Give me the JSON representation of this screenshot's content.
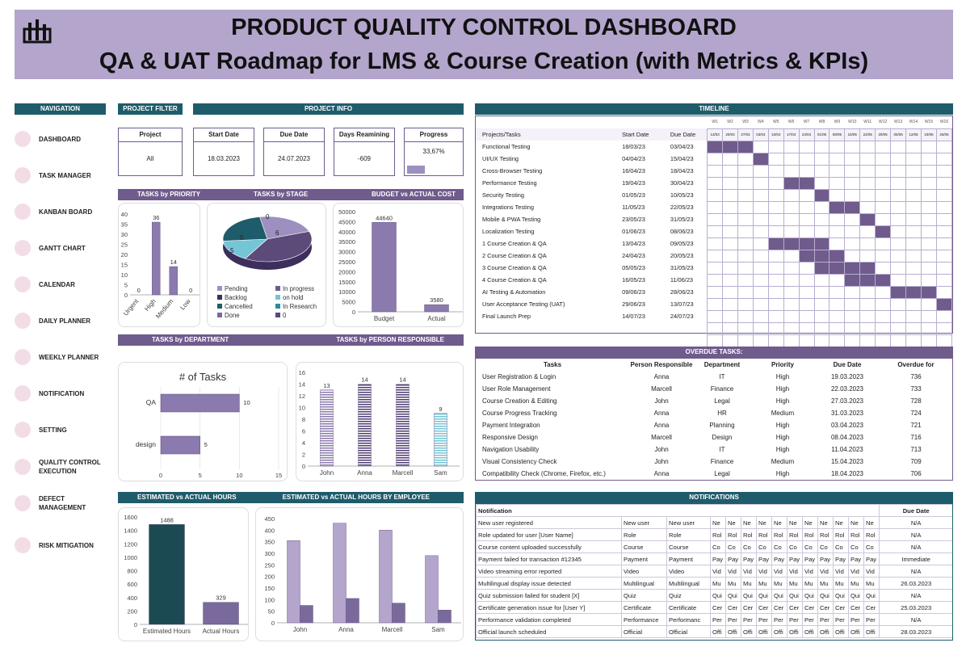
{
  "header": {
    "title": "PRODUCT QUALITY CONTROL DASHBOARD",
    "subtitle": "QA & UAT Roadmap for LMS & Course Creation (with Metrics & KPIs)",
    "logo_icon": "dashboard-bars-icon"
  },
  "navigation": {
    "title": "NAVIGATION",
    "items": [
      {
        "label": "DASHBOARD",
        "icon": "dashboard-icon"
      },
      {
        "label": "TASK MANAGER",
        "icon": "task-icon"
      },
      {
        "label": "KANBAN BOARD",
        "icon": "kanban-icon"
      },
      {
        "label": "GANTT CHART",
        "icon": "gantt-icon"
      },
      {
        "label": "CALENDAR",
        "icon": "calendar-icon"
      },
      {
        "label": "DAILY PLANNER",
        "icon": "daily-planner-icon"
      },
      {
        "label": "WEEKLY PLANNER",
        "icon": "weekly-planner-icon"
      },
      {
        "label": "NOTIFICATION",
        "icon": "notification-icon"
      },
      {
        "label": "SETTING",
        "icon": "setting-icon"
      },
      {
        "label": "QUALITY CONTROL EXECUTION",
        "icon": "quality-icon"
      },
      {
        "label": "DEFECT MANAGEMENT",
        "icon": "defect-icon"
      },
      {
        "label": "RISK MITIGATION",
        "icon": "risk-icon"
      }
    ]
  },
  "project_filter": {
    "title": "PROJECT FILTER",
    "label": "Project",
    "value": "All"
  },
  "project_info": {
    "title": "PROJECT INFO",
    "start_label": "Start Date",
    "start": "18.03.2023",
    "due_label": "Due Date",
    "due": "24.07.2023",
    "days_label": "Days Reamining",
    "days": "-609",
    "progress_label": "Progress",
    "progress": "33,67%",
    "progress_value": 0.3367
  },
  "section_titles": {
    "priority": "TASKS by PRIORITY",
    "stage": "TASKS by STAGE",
    "budget": "BUDGET vs ACTUAL COST",
    "department": "TASKS by DEPARTMENT",
    "person": "TASKS by PERSON RESPONSIBLE",
    "est_actual": "ESTIMATED vs ACTUAL HOURS",
    "est_employee": "ESTIMATED vs ACTUAL HOURS BY EMPLOYEE",
    "timeline": "TIMELINE",
    "overdue": "OVERDUE TASKS:",
    "notifications": "NOTIFICATIONS"
  },
  "chart_data": [
    {
      "type": "bar",
      "name": "priority",
      "categories": [
        "Urgent",
        "High",
        "Medium",
        "Low"
      ],
      "values": [
        0,
        36,
        14,
        0
      ],
      "ylim": [
        0,
        40
      ],
      "yticks": [
        0,
        5,
        10,
        15,
        20,
        25,
        30,
        35,
        40
      ]
    },
    {
      "type": "pie",
      "name": "stage",
      "slices": [
        {
          "label": "Pending",
          "value": 6
        },
        {
          "label": "In progress",
          "value": 0
        },
        {
          "label": "Backlog",
          "value": 0
        },
        {
          "label": "on hold",
          "value": 5
        },
        {
          "label": "Cancelled",
          "value": 0
        },
        {
          "label": "In Research",
          "value": 0
        },
        {
          "label": "Done",
          "value": 0
        },
        {
          "label": "0",
          "value": 0
        }
      ],
      "data_labels": [
        "0",
        "6",
        "0",
        "5"
      ],
      "legend": [
        "Pending",
        "In progress",
        "Backlog",
        "on hold",
        "Cancelled",
        "In Research",
        "Done",
        "0"
      ],
      "colors": [
        "#9d8fbf",
        "#6f5b8c",
        "#3d2f5c",
        "#74c6d6",
        "#1f5c6b",
        "#2b8c9b",
        "#7a6a9c",
        "#5c4a7a"
      ]
    },
    {
      "type": "bar",
      "name": "budget",
      "categories": [
        "Budget",
        "Actual"
      ],
      "values": [
        44640,
        3580
      ],
      "ylim": [
        0,
        50000
      ],
      "yticks": [
        0,
        5000,
        10000,
        15000,
        20000,
        25000,
        30000,
        35000,
        40000,
        45000,
        50000
      ]
    },
    {
      "type": "bar",
      "name": "department",
      "title": "# of Tasks",
      "categories": [
        "QA",
        "design"
      ],
      "values": [
        10,
        5
      ],
      "xlim": [
        0,
        15
      ],
      "xticks": [
        0,
        5,
        10,
        15
      ]
    },
    {
      "type": "bar",
      "name": "person",
      "categories": [
        "John",
        "Anna",
        "Marcell",
        "Sam"
      ],
      "values": [
        13,
        14,
        14,
        9
      ],
      "ylim": [
        0,
        16
      ],
      "yticks": [
        0,
        2,
        4,
        6,
        8,
        10,
        12,
        14,
        16
      ]
    },
    {
      "type": "bar",
      "name": "est_actual",
      "categories": [
        "Estimated Hours",
        "Actual Hours"
      ],
      "values": [
        1488,
        329
      ],
      "ylim": [
        0,
        1600
      ],
      "yticks": [
        0,
        200,
        400,
        600,
        800,
        1000,
        1200,
        1400,
        1600
      ]
    },
    {
      "type": "bar",
      "name": "est_employee",
      "categories": [
        "John",
        "Anna",
        "Marcell",
        "Sam"
      ],
      "series": [
        {
          "values": [
            355,
            430,
            400,
            290
          ]
        },
        {
          "values": [
            75,
            105,
            85,
            55
          ]
        }
      ],
      "ylim": [
        0,
        450
      ],
      "yticks": [
        0,
        50,
        100,
        150,
        200,
        250,
        300,
        350,
        400,
        450
      ]
    }
  ],
  "timeline": {
    "col_task": "Projects/Tasks",
    "col_start": "Start Date",
    "col_due": "Due Date",
    "weeks": [
      "W1",
      "W2",
      "W3",
      "W4",
      "W5",
      "W6",
      "W7",
      "W8",
      "W9",
      "W10",
      "W11",
      "W12",
      "W13",
      "W14",
      "W15",
      "W16"
    ],
    "week_dates": [
      "13/03",
      "20/03",
      "27/03",
      "03/04",
      "10/04",
      "17/04",
      "24/04",
      "01/05",
      "08/05",
      "15/05",
      "22/05",
      "29/05",
      "05/06",
      "12/06",
      "19/06",
      "26/06"
    ],
    "rows": [
      {
        "task": "Functional Testing",
        "start": "18/03/23",
        "due": "03/04/23",
        "s": 0,
        "e": 3
      },
      {
        "task": "UI/UX Testing",
        "start": "04/04/23",
        "due": "15/04/23",
        "s": 3,
        "e": 4
      },
      {
        "task": "Cross-Browser Testing",
        "start": "16/04/23",
        "due": "18/04/23",
        "s": 0,
        "e": 0
      },
      {
        "task": "Performance Testing",
        "start": "19/04/23",
        "due": "30/04/23",
        "s": 5,
        "e": 7
      },
      {
        "task": "Security Testing",
        "start": "01/05/23",
        "due": "10/05/23",
        "s": 7,
        "e": 8
      },
      {
        "task": "Integrations Testing",
        "start": "11/05/23",
        "due": "22/05/23",
        "s": 8,
        "e": 10
      },
      {
        "task": "Mobile & PWA Testing",
        "start": "23/05/23",
        "due": "31/05/23",
        "s": 10,
        "e": 11
      },
      {
        "task": "Localization Testing",
        "start": "01/06/23",
        "due": "08/06/23",
        "s": 11,
        "e": 12
      },
      {
        "task": "1 Course Creation & QA",
        "start": "13/04/23",
        "due": "09/05/23",
        "s": 4,
        "e": 8
      },
      {
        "task": "2 Course Creation & QA",
        "start": "24/04/23",
        "due": "20/05/23",
        "s": 6,
        "e": 9
      },
      {
        "task": "3 Course Creation & QA",
        "start": "05/05/23",
        "due": "31/05/23",
        "s": 7,
        "e": 11
      },
      {
        "task": "4 Course Creation & QA",
        "start": "16/05/23",
        "due": "11/06/23",
        "s": 9,
        "e": 12
      },
      {
        "task": "AI Testing & Automation",
        "start": "09/06/23",
        "due": "28/06/23",
        "s": 12,
        "e": 15
      },
      {
        "task": "User Acceptance Testing (UAT)",
        "start": "29/06/23",
        "due": "13/07/23",
        "s": 15,
        "e": 16
      },
      {
        "task": "Final Launch Prep",
        "start": "14/07/23",
        "due": "24/07/23",
        "s": 0,
        "e": 0
      }
    ]
  },
  "overdue": {
    "headers": [
      "Tasks",
      "Person Responsible",
      "Department",
      "Priority",
      "Due Date",
      "Overdue for"
    ],
    "rows": [
      [
        "User Registration & Login",
        "Anna",
        "IT",
        "High",
        "19.03.2023",
        "736"
      ],
      [
        "User Role Management",
        "Marcell",
        "Finance",
        "High",
        "22.03.2023",
        "733"
      ],
      [
        "Course Creation & Editing",
        "John",
        "Legal",
        "High",
        "27.03.2023",
        "728"
      ],
      [
        "Course Progress Tracking",
        "Anna",
        "HR",
        "Medium",
        "31.03.2023",
        "724"
      ],
      [
        "Payment Integration",
        "Anna",
        "Planning",
        "High",
        "03.04.2023",
        "721"
      ],
      [
        "Responsive Design",
        "Marcell",
        "Design",
        "High",
        "08.04.2023",
        "716"
      ],
      [
        "Navigation Usability",
        "John",
        "IT",
        "High",
        "11.04.2023",
        "713"
      ],
      [
        "Visual Consistency Check",
        "John",
        "Finance",
        "Medium",
        "15.04.2023",
        "709"
      ],
      [
        "Compatibility Check (Chrome, Firefox, etc.)",
        "Anna",
        "Legal",
        "High",
        "18.04.2023",
        "706"
      ]
    ]
  },
  "notifications": {
    "col_notification": "Notification",
    "col_due": "Due Date",
    "rows": [
      {
        "text": "New user registered",
        "a": "New user",
        "b": "New user",
        "c": "Ne",
        "due": "N/A"
      },
      {
        "text": "Role updated for user [User Name]",
        "a": "Role",
        "b": "Role",
        "c": "Rol",
        "due": "N/A"
      },
      {
        "text": "Course content uploaded successfully",
        "a": "Course",
        "b": "Course",
        "c": "Co",
        "due": "N/A"
      },
      {
        "text": "Payment failed for transaction #12345",
        "a": "Payment",
        "b": "Payment",
        "c": "Pay",
        "due": "Immediate"
      },
      {
        "text": "Video streaming error reported",
        "a": "Video",
        "b": "Video",
        "c": "Vid",
        "due": "N/A"
      },
      {
        "text": "Multilingual display issue detected",
        "a": "Multilingual",
        "b": "Multilingual",
        "c": "Mu",
        "due": "26.03.2023"
      },
      {
        "text": "Quiz submission failed for student [X]",
        "a": "Quiz",
        "b": "Quiz",
        "c": "Qui",
        "due": "N/A"
      },
      {
        "text": "Certificate generation issue for [User Y]",
        "a": "Certificate",
        "b": "Certificate",
        "c": "Cer",
        "due": "25.03.2023"
      },
      {
        "text": "Performance validation completed",
        "a": "Performance",
        "b": "Performanc",
        "c": "Per",
        "due": "N/A"
      },
      {
        "text": "Official launch scheduled",
        "a": "Official",
        "b": "Official",
        "c": "Offi",
        "due": "28.03.2023"
      }
    ]
  },
  "colors": {
    "header_bg": "#b3a5cc",
    "teal": "#1f5c6b",
    "purple": "#6f5b8c",
    "bar": "#7a6a9c",
    "gantt": "#6f5b8c"
  }
}
